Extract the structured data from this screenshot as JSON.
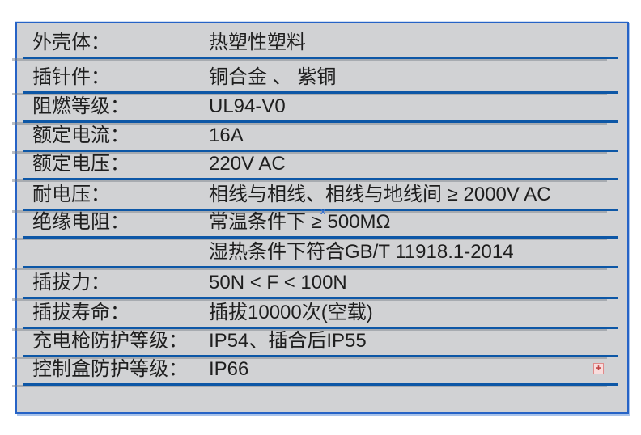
{
  "table": {
    "rows": [
      {
        "label": "外壳体：",
        "value": "热塑性塑料"
      },
      {
        "label": "插针件：",
        "value": "铜合金 、 紫铜"
      },
      {
        "label": "阻燃等级：",
        "value": "UL94-V0"
      },
      {
        "label": "额定电流：",
        "value": "16A"
      },
      {
        "label": "额定电压：",
        "value": "220V AC"
      },
      {
        "label": "耐电压：",
        "value": "相线与相线、相线与地线间 ≥ 2000V AC"
      },
      {
        "label": "绝缘电阻：",
        "value": "常温条件下 ≥ 500MΩ"
      },
      {
        "label": "",
        "value": "湿热条件下符合GB/T 11918.1-2014"
      },
      {
        "label": "插拔力：",
        "value": "50N < F < 100N"
      },
      {
        "label": "插拔寿命：",
        "value": "插拔10000次(空载)"
      },
      {
        "label": "充电枪防护等级：",
        "value": "IP54、插合后IP55"
      },
      {
        "label": "控制盒防护等级：",
        "value": "IP66"
      }
    ]
  },
  "icons": {
    "broken_image_marker": "x",
    "broken_image_glyph": "✚"
  },
  "colors": {
    "page_background": "#ffffff",
    "table_background": "#d1d2d4",
    "table_border": "#2663c6",
    "row_underline": "#0d57a6",
    "text": "#1e1e1e",
    "marker_blue": "#3a73d0",
    "broken_icon_red": "#c14444"
  }
}
